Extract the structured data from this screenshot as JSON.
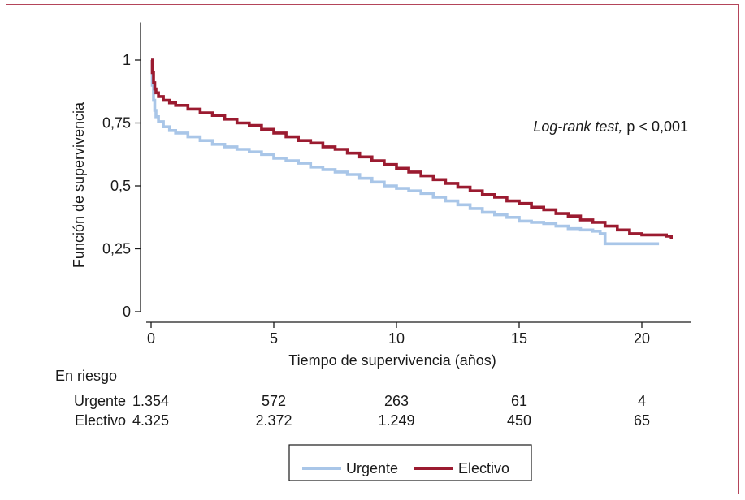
{
  "chart_data": {
    "type": "line",
    "ylabel": "Función de supervivencia",
    "xlabel": "Tiempo de supervivencia (años)",
    "annotation": {
      "italic": "Log-rank test,",
      "plain": " p < 0,001"
    },
    "xlim": [
      0,
      22
    ],
    "ylim": [
      0,
      1.15
    ],
    "x_ticks": [
      0,
      5,
      10,
      15,
      20
    ],
    "x_tick_labels": [
      "0",
      "5",
      "10",
      "15",
      "20"
    ],
    "y_ticks": [
      0,
      0.25,
      0.5,
      0.75,
      1
    ],
    "y_tick_labels": [
      "0",
      "0,25",
      "0,5",
      "0,75",
      "1"
    ],
    "series": [
      {
        "name": "Urgente",
        "color": "#a9c6e8",
        "x": [
          0,
          0.05,
          0.1,
          0.15,
          0.2,
          0.3,
          0.5,
          0.75,
          1,
          1.5,
          2,
          2.5,
          3,
          3.5,
          4,
          4.5,
          5,
          5.5,
          6,
          6.5,
          7,
          7.5,
          8,
          8.5,
          9,
          9.5,
          10,
          10.5,
          11,
          11.5,
          12,
          12.5,
          13,
          13.5,
          14,
          14.5,
          15,
          15.5,
          16,
          16.5,
          17,
          17.5,
          18,
          18.3,
          18.5,
          19,
          19.5,
          20,
          20.5,
          20.7
        ],
        "y": [
          1.0,
          0.9,
          0.84,
          0.8,
          0.775,
          0.755,
          0.735,
          0.72,
          0.71,
          0.695,
          0.68,
          0.665,
          0.655,
          0.645,
          0.635,
          0.625,
          0.61,
          0.6,
          0.59,
          0.575,
          0.565,
          0.555,
          0.545,
          0.53,
          0.515,
          0.5,
          0.49,
          0.48,
          0.47,
          0.455,
          0.44,
          0.425,
          0.41,
          0.395,
          0.385,
          0.375,
          0.36,
          0.355,
          0.35,
          0.34,
          0.33,
          0.325,
          0.32,
          0.31,
          0.27,
          0.27,
          0.27,
          0.27,
          0.27,
          0.27
        ]
      },
      {
        "name": "Electivo",
        "color": "#9b1b30",
        "x": [
          0,
          0.05,
          0.1,
          0.15,
          0.2,
          0.3,
          0.5,
          0.75,
          1,
          1.5,
          2,
          2.5,
          3,
          3.5,
          4,
          4.5,
          5,
          5.5,
          6,
          6.5,
          7,
          7.5,
          8,
          8.5,
          9,
          9.5,
          10,
          10.5,
          11,
          11.5,
          12,
          12.5,
          13,
          13.5,
          14,
          14.5,
          15,
          15.5,
          16,
          16.5,
          17,
          17.5,
          18,
          18.5,
          19,
          19.5,
          20,
          20.5,
          21,
          21.2
        ],
        "y": [
          1.0,
          0.95,
          0.91,
          0.885,
          0.87,
          0.855,
          0.84,
          0.83,
          0.82,
          0.805,
          0.79,
          0.78,
          0.765,
          0.75,
          0.74,
          0.725,
          0.71,
          0.695,
          0.68,
          0.67,
          0.655,
          0.645,
          0.63,
          0.615,
          0.6,
          0.585,
          0.57,
          0.555,
          0.54,
          0.525,
          0.51,
          0.495,
          0.48,
          0.465,
          0.455,
          0.44,
          0.43,
          0.415,
          0.405,
          0.39,
          0.38,
          0.365,
          0.355,
          0.34,
          0.325,
          0.31,
          0.305,
          0.305,
          0.3,
          0.29
        ]
      }
    ],
    "legend": [
      "Urgente",
      "Electivo"
    ],
    "legend_position": "bottom",
    "grid": false
  },
  "risk_table": {
    "title": "En riesgo",
    "rows": [
      {
        "label": "Urgente",
        "values": [
          "1.354",
          "572",
          "263",
          "61",
          "4"
        ]
      },
      {
        "label": "Electivo",
        "values": [
          "4.325",
          "2.372",
          "1.249",
          "450",
          "65"
        ]
      }
    ]
  }
}
